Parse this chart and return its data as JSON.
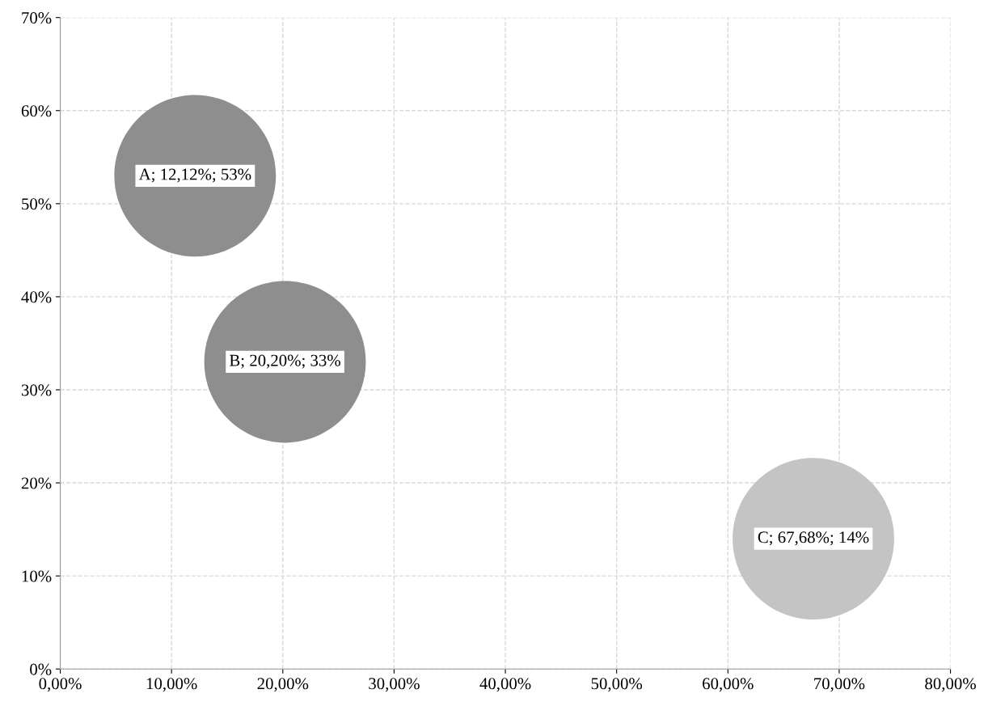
{
  "chart_data": {
    "type": "bubble",
    "x": [
      12.12,
      20.2,
      67.68
    ],
    "values": [
      53,
      33,
      14
    ],
    "sizes": [
      1,
      1,
      1
    ],
    "colors": [
      "#8e8e8e",
      "#8e8e8e",
      "#c4c4c4"
    ],
    "value_labels": [
      "A; 12,12%; 53%",
      "B; 20,20%; 33%",
      "C; 67,68%; 14%"
    ],
    "xlim": [
      0,
      80
    ],
    "xticks": [
      {
        "value": 0,
        "label": "0,00%"
      },
      {
        "value": 10,
        "label": "10,00%"
      },
      {
        "value": 20,
        "label": "20,00%"
      },
      {
        "value": 30,
        "label": "30,00%"
      },
      {
        "value": 40,
        "label": "40,00%"
      },
      {
        "value": 50,
        "label": "50,00%"
      },
      {
        "value": 60,
        "label": "60,00%"
      },
      {
        "value": 70,
        "label": "70,00%"
      },
      {
        "value": 80,
        "label": "80,00%"
      }
    ],
    "ylim": [
      0,
      70
    ],
    "yticks": [
      {
        "value": 0,
        "label": "0%"
      },
      {
        "value": 10,
        "label": "10%"
      },
      {
        "value": 20,
        "label": "20%"
      },
      {
        "value": 30,
        "label": "30%"
      },
      {
        "value": 40,
        "label": "40%"
      },
      {
        "value": 50,
        "label": "50%"
      },
      {
        "value": 60,
        "label": "60%"
      },
      {
        "value": 70,
        "label": "70%"
      }
    ],
    "grid": true,
    "line_style": "dashed"
  }
}
